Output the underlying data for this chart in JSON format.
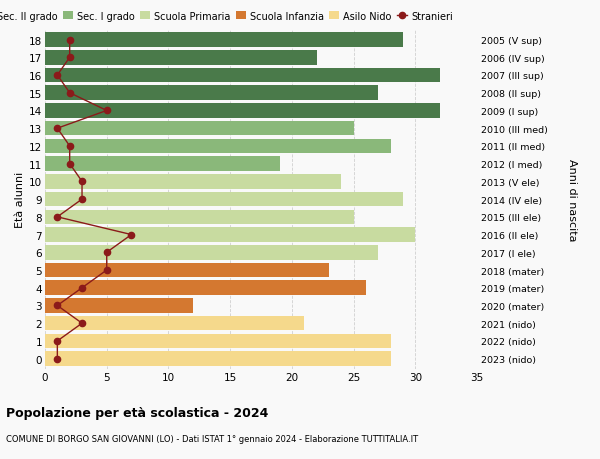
{
  "ages": [
    0,
    1,
    2,
    3,
    4,
    5,
    6,
    7,
    8,
    9,
    10,
    11,
    12,
    13,
    14,
    15,
    16,
    17,
    18
  ],
  "anni_nascita": [
    "2023 (nido)",
    "2022 (nido)",
    "2021 (nido)",
    "2020 (mater)",
    "2019 (mater)",
    "2018 (mater)",
    "2017 (I ele)",
    "2016 (II ele)",
    "2015 (III ele)",
    "2014 (IV ele)",
    "2013 (V ele)",
    "2012 (I med)",
    "2011 (II med)",
    "2010 (III med)",
    "2009 (I sup)",
    "2008 (II sup)",
    "2007 (III sup)",
    "2006 (IV sup)",
    "2005 (V sup)"
  ],
  "bar_values": [
    28,
    28,
    21,
    12,
    26,
    23,
    27,
    30,
    25,
    29,
    24,
    19,
    28,
    25,
    32,
    27,
    32,
    22,
    29
  ],
  "bar_colors": [
    "#f5d98c",
    "#f5d98c",
    "#f5d98c",
    "#d47830",
    "#d47830",
    "#d47830",
    "#c8dba0",
    "#c8dba0",
    "#c8dba0",
    "#c8dba0",
    "#c8dba0",
    "#8ab87a",
    "#8ab87a",
    "#8ab87a",
    "#4a7a4a",
    "#4a7a4a",
    "#4a7a4a",
    "#4a7a4a",
    "#4a7a4a"
  ],
  "stranieri": [
    1,
    1,
    3,
    1,
    3,
    5,
    5,
    7,
    1,
    3,
    3,
    2,
    2,
    1,
    5,
    2,
    1,
    2,
    2
  ],
  "legend_labels": [
    "Sec. II grado",
    "Sec. I grado",
    "Scuola Primaria",
    "Scuola Infanzia",
    "Asilo Nido",
    "Stranieri"
  ],
  "legend_colors": [
    "#4a7a4a",
    "#8ab87a",
    "#c8dba0",
    "#d47830",
    "#f5d98c",
    "#8b1a1a"
  ],
  "title": "Popolazione per età scolastica - 2024",
  "subtitle": "COMUNE DI BORGO SAN GIOVANNI (LO) - Dati ISTAT 1° gennaio 2024 - Elaborazione TUTTITALIA.IT",
  "ylabel": "Età alunni",
  "right_ylabel": "Anni di nascita",
  "xlim": [
    0,
    35
  ],
  "xticks": [
    0,
    5,
    10,
    15,
    20,
    25,
    30,
    35
  ],
  "background_color": "#f9f9f9",
  "grid_color": "#d0d0d0",
  "bar_height": 0.82
}
